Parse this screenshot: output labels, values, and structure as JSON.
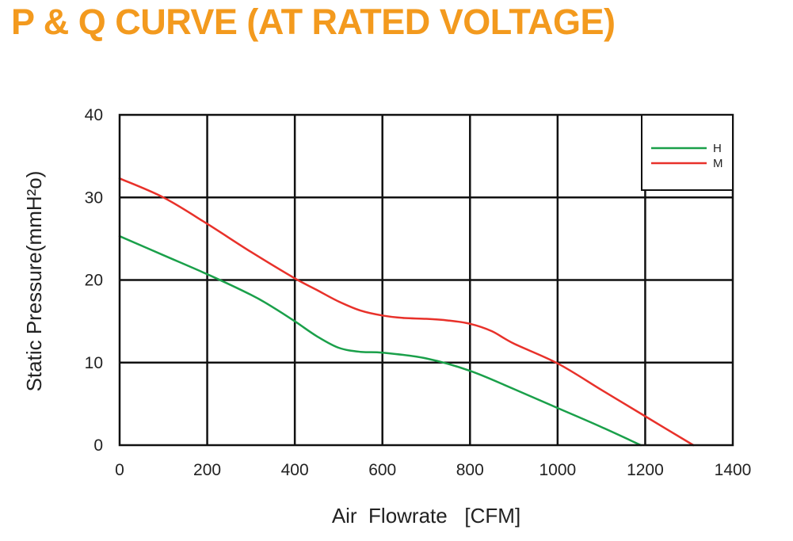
{
  "chart_data": {
    "type": "line",
    "title": "P & Q CURVE (AT RATED VOLTAGE)",
    "xlabel": "Air  Flowrate   [CFM]",
    "ylabel": "Static Pressure(mmH²o)",
    "xlim": [
      0,
      1400
    ],
    "ylim": [
      0,
      40
    ],
    "xticks": [
      "0",
      "200",
      "400",
      "600",
      "800",
      "1000",
      "1200",
      "1400"
    ],
    "yticks": [
      "0",
      "10",
      "20",
      "30",
      "40"
    ],
    "grid": true,
    "legend_position": "top-right",
    "series": [
      {
        "name": "H",
        "color": "#1aa04a",
        "x": [
          0,
          100,
          200,
          300,
          350,
          400,
          450,
          500,
          550,
          600,
          700,
          800,
          900,
          1000,
          1100,
          1190
        ],
        "y": [
          25.3,
          23.0,
          20.7,
          18.2,
          16.7,
          15.0,
          13.2,
          11.8,
          11.3,
          11.2,
          10.5,
          9.0,
          6.8,
          4.5,
          2.2,
          0
        ]
      },
      {
        "name": "M",
        "color": "#e8312a",
        "x": [
          0,
          100,
          200,
          300,
          400,
          450,
          500,
          550,
          600,
          650,
          700,
          750,
          800,
          850,
          900,
          1000,
          1100,
          1200,
          1310
        ],
        "y": [
          32.3,
          30.0,
          26.8,
          23.4,
          20.2,
          18.8,
          17.4,
          16.3,
          15.7,
          15.4,
          15.3,
          15.1,
          14.7,
          13.8,
          12.3,
          9.9,
          6.7,
          3.5,
          0
        ]
      }
    ]
  }
}
